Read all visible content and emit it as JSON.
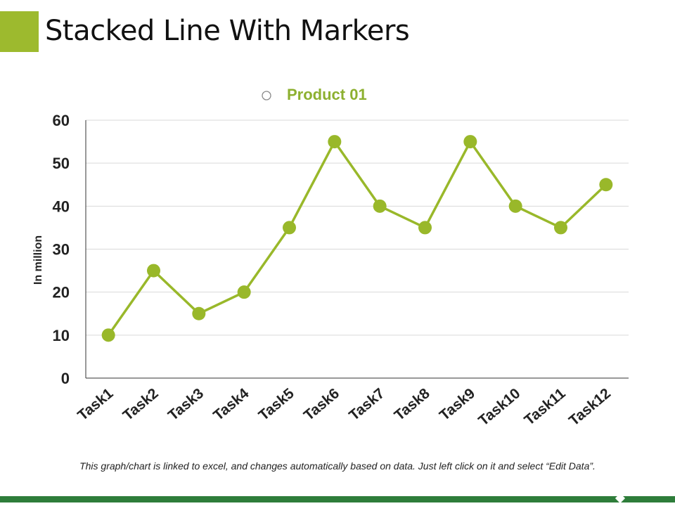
{
  "slide": {
    "title": "Stacked Line With Markers",
    "footnote": "This graph/chart is linked to excel, and changes automatically based on data. Just left click on it and select “Edit Data”."
  },
  "colors": {
    "accent": "#9dba2e",
    "series": "#99b82a",
    "legend_text": "#8db030",
    "legend_marker": "#8a8a8a",
    "bottom_bar": "#2e7d3a",
    "gridline": "#d9d9d9",
    "axis": "#333333"
  },
  "chart_data": {
    "type": "line",
    "categories": [
      "Task1",
      "Task2",
      "Task3",
      "Task4",
      "Task5",
      "Task6",
      "Task7",
      "Task8",
      "Task9",
      "Task10",
      "Task11",
      "Task12"
    ],
    "series": [
      {
        "name": "Product 01",
        "values": [
          10,
          25,
          15,
          20,
          35,
          55,
          40,
          35,
          55,
          40,
          35,
          45
        ]
      }
    ],
    "ylabel": "In million",
    "ylim": [
      0,
      60
    ],
    "yticks": [
      0,
      10,
      20,
      30,
      40,
      50,
      60
    ],
    "grid": true,
    "markers": true,
    "legend_position": "top-center",
    "legend_marker": "o"
  }
}
